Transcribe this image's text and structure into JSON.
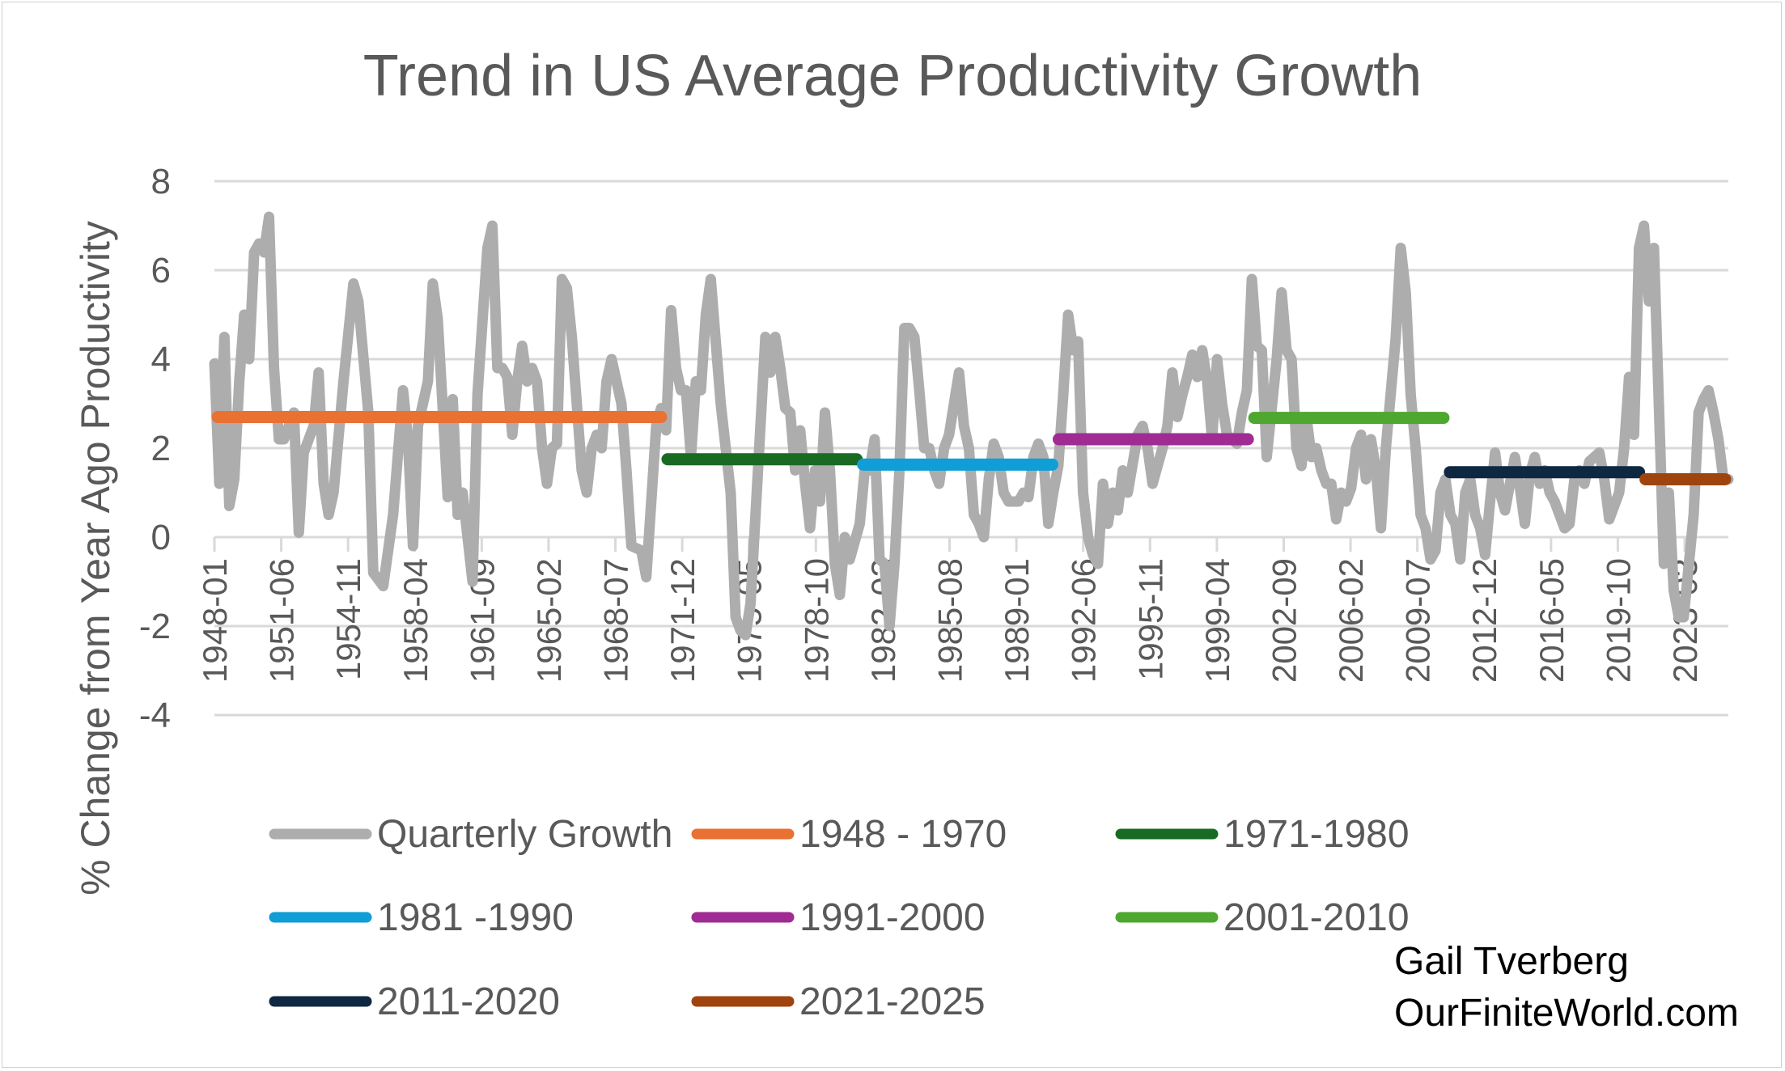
{
  "chart_data": {
    "type": "line",
    "title": "Trend in US Average Productivity Growth",
    "ylabel": "% Change from Year Ago Productivity",
    "xlabel": "",
    "ylim": [
      -4,
      8
    ],
    "yticks": [
      -4,
      -2,
      0,
      2,
      4,
      6,
      8
    ],
    "grid": true,
    "legend_position": "bottom",
    "x_range_years": [
      1948,
      2025.4
    ],
    "xtick_labels": [
      "1948-01",
      "1951-06",
      "1954-11",
      "1958-04",
      "1961-09",
      "1965-02",
      "1968-07",
      "1971-12",
      "1975-05",
      "1978-10",
      "1982-03",
      "1985-08",
      "1989-01",
      "1992-06",
      "1995-11",
      "1999-04",
      "2002-09",
      "2006-02",
      "2009-07",
      "2012-12",
      "2016-05",
      "2019-10",
      "2023-03"
    ],
    "series": [
      {
        "name": "Quarterly Growth",
        "color": "#ADADAD",
        "points": [
          [
            1948.0,
            3.9
          ],
          [
            1948.25,
            1.2
          ],
          [
            1948.5,
            4.5
          ],
          [
            1948.75,
            0.7
          ],
          [
            1949.0,
            1.3
          ],
          [
            1949.25,
            3.5
          ],
          [
            1949.5,
            5.0
          ],
          [
            1949.75,
            4.0
          ],
          [
            1950.0,
            6.4
          ],
          [
            1950.25,
            6.6
          ],
          [
            1950.5,
            6.4
          ],
          [
            1950.75,
            7.2
          ],
          [
            1951.0,
            3.8
          ],
          [
            1951.25,
            2.2
          ],
          [
            1951.5,
            2.2
          ],
          [
            1951.75,
            2.5
          ],
          [
            1952.0,
            2.8
          ],
          [
            1952.25,
            0.1
          ],
          [
            1952.5,
            1.9
          ],
          [
            1953.0,
            2.5
          ],
          [
            1953.25,
            3.7
          ],
          [
            1953.5,
            1.2
          ],
          [
            1953.75,
            0.5
          ],
          [
            1954.0,
            1.0
          ],
          [
            1954.5,
            3.5
          ],
          [
            1955.0,
            5.7
          ],
          [
            1955.25,
            5.3
          ],
          [
            1955.75,
            2.8
          ],
          [
            1956.0,
            -0.8
          ],
          [
            1956.5,
            -1.1
          ],
          [
            1957.0,
            0.5
          ],
          [
            1957.5,
            3.3
          ],
          [
            1957.75,
            2.2
          ],
          [
            1958.0,
            -0.2
          ],
          [
            1958.25,
            2.5
          ],
          [
            1958.75,
            3.5
          ],
          [
            1959.0,
            5.7
          ],
          [
            1959.25,
            4.9
          ],
          [
            1959.75,
            0.9
          ],
          [
            1960.0,
            3.1
          ],
          [
            1960.25,
            0.5
          ],
          [
            1960.5,
            1.0
          ],
          [
            1961.0,
            -1.0
          ],
          [
            1961.25,
            3.2
          ],
          [
            1961.75,
            6.5
          ],
          [
            1962.0,
            7.0
          ],
          [
            1962.25,
            3.8
          ],
          [
            1962.5,
            3.8
          ],
          [
            1962.75,
            3.6
          ],
          [
            1963.0,
            2.3
          ],
          [
            1963.25,
            3.5
          ],
          [
            1963.5,
            4.3
          ],
          [
            1963.75,
            3.5
          ],
          [
            1964.0,
            3.8
          ],
          [
            1964.25,
            3.5
          ],
          [
            1964.5,
            2.0
          ],
          [
            1964.75,
            1.2
          ],
          [
            1965.0,
            2.0
          ],
          [
            1965.25,
            2.1
          ],
          [
            1965.5,
            5.8
          ],
          [
            1965.75,
            5.6
          ],
          [
            1966.0,
            4.5
          ],
          [
            1966.5,
            1.5
          ],
          [
            1966.75,
            1.0
          ],
          [
            1967.0,
            2.0
          ],
          [
            1967.25,
            2.3
          ],
          [
            1967.5,
            2.0
          ],
          [
            1967.75,
            3.5
          ],
          [
            1968.0,
            4.0
          ],
          [
            1968.5,
            3.0
          ],
          [
            1968.75,
            1.5
          ],
          [
            1969.0,
            -0.2
          ],
          [
            1969.5,
            -0.3
          ],
          [
            1969.75,
            -0.9
          ],
          [
            1970.25,
            2.5
          ],
          [
            1970.5,
            2.9
          ],
          [
            1970.75,
            2.4
          ],
          [
            1971.0,
            5.1
          ],
          [
            1971.25,
            3.8
          ],
          [
            1971.5,
            3.3
          ],
          [
            1971.75,
            3.3
          ],
          [
            1972.0,
            1.8
          ],
          [
            1972.25,
            3.5
          ],
          [
            1972.5,
            3.3
          ],
          [
            1972.75,
            5.0
          ],
          [
            1973.0,
            5.8
          ],
          [
            1973.5,
            3.0
          ],
          [
            1974.0,
            1.0
          ],
          [
            1974.25,
            -1.8
          ],
          [
            1974.5,
            -2.1
          ],
          [
            1974.75,
            -2.2
          ],
          [
            1975.0,
            -1.5
          ],
          [
            1975.25,
            0.5
          ],
          [
            1975.75,
            4.5
          ],
          [
            1976.0,
            3.7
          ],
          [
            1976.25,
            4.5
          ],
          [
            1976.5,
            3.8
          ],
          [
            1976.75,
            2.9
          ],
          [
            1977.0,
            2.8
          ],
          [
            1977.25,
            1.5
          ],
          [
            1977.5,
            2.4
          ],
          [
            1977.75,
            1.2
          ],
          [
            1978.0,
            0.2
          ],
          [
            1978.25,
            1.5
          ],
          [
            1978.5,
            0.8
          ],
          [
            1978.75,
            2.8
          ],
          [
            1979.0,
            1.5
          ],
          [
            1979.25,
            -0.6
          ],
          [
            1979.5,
            -1.3
          ],
          [
            1979.75,
            0.0
          ],
          [
            1980.0,
            -0.5
          ],
          [
            1980.5,
            0.3
          ],
          [
            1980.75,
            1.5
          ],
          [
            1981.0,
            1.5
          ],
          [
            1981.25,
            2.2
          ],
          [
            1981.5,
            -0.5
          ],
          [
            1981.75,
            -0.6
          ],
          [
            1982.0,
            -2.0
          ],
          [
            1982.25,
            -0.6
          ],
          [
            1982.5,
            1.5
          ],
          [
            1982.75,
            4.7
          ],
          [
            1983.0,
            4.7
          ],
          [
            1983.25,
            4.5
          ],
          [
            1983.5,
            3.3
          ],
          [
            1983.75,
            2.0
          ],
          [
            1984.0,
            2.0
          ],
          [
            1984.25,
            1.5
          ],
          [
            1984.5,
            1.2
          ],
          [
            1984.75,
            2.0
          ],
          [
            1985.0,
            2.3
          ],
          [
            1985.25,
            3.0
          ],
          [
            1985.5,
            3.7
          ],
          [
            1985.75,
            2.5
          ],
          [
            1986.0,
            2.0
          ],
          [
            1986.25,
            0.5
          ],
          [
            1986.5,
            0.3
          ],
          [
            1986.75,
            0.0
          ],
          [
            1987.0,
            1.3
          ],
          [
            1987.25,
            2.1
          ],
          [
            1987.5,
            1.8
          ],
          [
            1987.75,
            1.0
          ],
          [
            1988.0,
            0.8
          ],
          [
            1988.5,
            0.8
          ],
          [
            1988.75,
            1.0
          ],
          [
            1989.0,
            0.9
          ],
          [
            1989.25,
            1.8
          ],
          [
            1989.5,
            2.1
          ],
          [
            1989.75,
            1.8
          ],
          [
            1990.0,
            0.3
          ],
          [
            1990.25,
            1.0
          ],
          [
            1990.5,
            1.6
          ],
          [
            1990.75,
            3.2
          ],
          [
            1991.0,
            5.0
          ],
          [
            1991.25,
            4.2
          ],
          [
            1991.5,
            4.4
          ],
          [
            1991.75,
            1.0
          ],
          [
            1992.0,
            0.0
          ],
          [
            1992.25,
            -0.4
          ],
          [
            1992.5,
            -0.6
          ],
          [
            1992.75,
            1.2
          ],
          [
            1993.0,
            0.3
          ],
          [
            1993.25,
            1.0
          ],
          [
            1993.5,
            0.6
          ],
          [
            1993.75,
            1.5
          ],
          [
            1994.0,
            1.0
          ],
          [
            1994.5,
            2.3
          ],
          [
            1994.75,
            2.5
          ],
          [
            1995.0,
            2.0
          ],
          [
            1995.25,
            1.2
          ],
          [
            1995.75,
            2.0
          ],
          [
            1996.0,
            2.5
          ],
          [
            1996.25,
            3.7
          ],
          [
            1996.5,
            2.7
          ],
          [
            1996.75,
            3.2
          ],
          [
            1997.0,
            3.6
          ],
          [
            1997.25,
            4.1
          ],
          [
            1997.5,
            3.6
          ],
          [
            1997.75,
            4.2
          ],
          [
            1998.0,
            3.5
          ],
          [
            1998.25,
            2.2
          ],
          [
            1998.5,
            4.0
          ],
          [
            1998.75,
            3.0
          ],
          [
            1999.0,
            2.3
          ],
          [
            1999.5,
            2.1
          ],
          [
            1999.75,
            2.8
          ],
          [
            2000.0,
            3.3
          ],
          [
            2000.25,
            5.8
          ],
          [
            2000.5,
            4.3
          ],
          [
            2000.75,
            4.2
          ],
          [
            2001.0,
            1.8
          ],
          [
            2001.5,
            4.0
          ],
          [
            2001.75,
            5.5
          ],
          [
            2002.0,
            4.2
          ],
          [
            2002.25,
            4.0
          ],
          [
            2002.5,
            2.0
          ],
          [
            2002.75,
            1.6
          ],
          [
            2003.0,
            2.7
          ],
          [
            2003.25,
            1.8
          ],
          [
            2003.5,
            2.0
          ],
          [
            2003.75,
            1.5
          ],
          [
            2004.0,
            1.2
          ],
          [
            2004.25,
            1.2
          ],
          [
            2004.5,
            0.4
          ],
          [
            2004.75,
            1.0
          ],
          [
            2005.0,
            0.8
          ],
          [
            2005.25,
            1.1
          ],
          [
            2005.5,
            2.0
          ],
          [
            2005.75,
            2.3
          ],
          [
            2006.0,
            1.3
          ],
          [
            2006.25,
            2.2
          ],
          [
            2006.5,
            1.5
          ],
          [
            2006.75,
            0.2
          ],
          [
            2007.0,
            2.0
          ],
          [
            2007.5,
            4.5
          ],
          [
            2007.75,
            6.5
          ],
          [
            2008.0,
            5.5
          ],
          [
            2008.25,
            3.2
          ],
          [
            2008.5,
            2.0
          ],
          [
            2008.75,
            0.5
          ],
          [
            2009.0,
            0.2
          ],
          [
            2009.25,
            -0.5
          ],
          [
            2009.5,
            -0.3
          ],
          [
            2009.75,
            1.0
          ],
          [
            2010.0,
            1.3
          ],
          [
            2010.25,
            0.5
          ],
          [
            2010.5,
            0.3
          ],
          [
            2010.75,
            -0.5
          ],
          [
            2011.0,
            1.0
          ],
          [
            2011.25,
            1.3
          ],
          [
            2011.5,
            0.5
          ],
          [
            2011.75,
            0.2
          ],
          [
            2012.0,
            -0.4
          ],
          [
            2012.25,
            0.8
          ],
          [
            2012.5,
            1.9
          ],
          [
            2012.75,
            1.0
          ],
          [
            2013.0,
            0.6
          ],
          [
            2013.25,
            1.2
          ],
          [
            2013.5,
            1.8
          ],
          [
            2013.75,
            1.1
          ],
          [
            2014.0,
            0.3
          ],
          [
            2014.25,
            1.4
          ],
          [
            2014.5,
            1.8
          ],
          [
            2014.75,
            1.2
          ],
          [
            2015.0,
            1.5
          ],
          [
            2015.25,
            1.0
          ],
          [
            2015.5,
            0.8
          ],
          [
            2015.75,
            0.5
          ],
          [
            2016.0,
            0.2
          ],
          [
            2016.25,
            0.3
          ],
          [
            2016.5,
            1.3
          ],
          [
            2016.75,
            1.5
          ],
          [
            2017.0,
            1.2
          ],
          [
            2017.25,
            1.7
          ],
          [
            2017.5,
            1.8
          ],
          [
            2017.75,
            1.9
          ],
          [
            2018.0,
            1.3
          ],
          [
            2018.25,
            0.4
          ],
          [
            2018.75,
            1.0
          ],
          [
            2019.0,
            2.0
          ],
          [
            2019.25,
            3.6
          ],
          [
            2019.5,
            2.3
          ],
          [
            2019.75,
            6.5
          ],
          [
            2020.0,
            7.0
          ],
          [
            2020.25,
            5.3
          ],
          [
            2020.5,
            6.5
          ],
          [
            2020.75,
            3.0
          ],
          [
            2021.0,
            -0.6
          ],
          [
            2021.25,
            1.0
          ],
          [
            2021.5,
            -1.2
          ],
          [
            2021.75,
            -1.8
          ],
          [
            2022.0,
            -1.8
          ],
          [
            2022.5,
            0.5
          ],
          [
            2022.75,
            2.8
          ],
          [
            2023.0,
            3.1
          ],
          [
            2023.25,
            3.3
          ],
          [
            2023.5,
            2.8
          ],
          [
            2023.75,
            2.2
          ],
          [
            2024.0,
            1.3
          ],
          [
            2024.25,
            1.3
          ]
        ]
      },
      {
        "name": "1948 - 1970",
        "color": "#E97132",
        "start": 1948,
        "end": 1971,
        "value": 2.7
      },
      {
        "name": "1971-1980",
        "color": "#196B24",
        "start": 1971,
        "end": 1981,
        "value": 1.75
      },
      {
        "name": "1981 -1990",
        "color": "#0F9ED5",
        "start": 1981,
        "end": 1991,
        "value": 1.63
      },
      {
        "name": "1991-2000",
        "color": "#A02B93",
        "start": 1991,
        "end": 2001,
        "value": 2.2
      },
      {
        "name": "2001-2010",
        "color": "#4EA72E",
        "start": 2001,
        "end": 2011,
        "value": 2.68
      },
      {
        "name": "2011-2020",
        "color": "#0E2841",
        "start": 2011,
        "end": 2021,
        "value": 1.46
      },
      {
        "name": "2021-2025",
        "color": "#A0440F",
        "start": 2021,
        "end": 2025.4,
        "value": 1.3
      }
    ]
  },
  "attribution": {
    "author": "Gail Tverberg",
    "site": "OurFiniteWorld.com"
  }
}
